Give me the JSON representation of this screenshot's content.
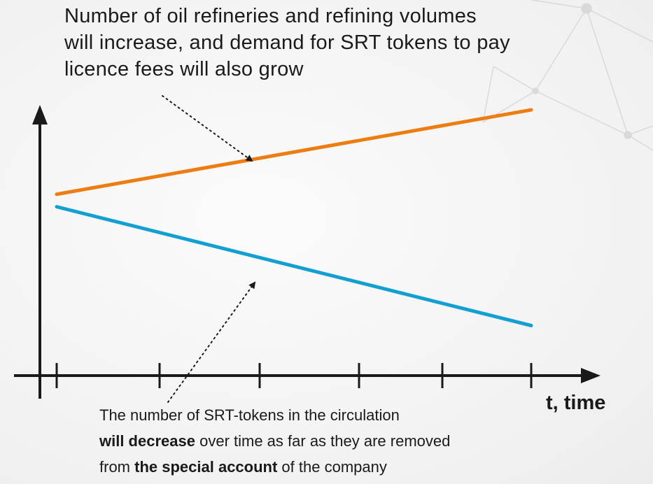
{
  "annotations": {
    "top": {
      "lines": [
        "Number of oil refineries and refining volumes",
        "will increase, and demand for SRT tokens to pay",
        "licence fees will also grow"
      ]
    },
    "bottom": {
      "line1": "The number of SRT-tokens in the circulation",
      "line2_bold": "will decrease",
      "line2_rest": " over time as far as they are removed",
      "line3_start": "from ",
      "line3_bold": "the special account",
      "line3_rest": " of the company"
    }
  },
  "chart_data": {
    "type": "line",
    "xlabel": "t, time",
    "ylabel": "",
    "x_ticks": 6,
    "ylim": [
      0,
      10
    ],
    "series": [
      {
        "color": "#ee7d11",
        "x": [
          0,
          5
        ],
        "y": [
          5.8,
          8.5
        ]
      },
      {
        "color": "#139fd1",
        "x": [
          0,
          5
        ],
        "y": [
          5.4,
          1.6
        ]
      }
    ],
    "axis_color": "#1a1a1a",
    "arrow_style": "dotted"
  }
}
